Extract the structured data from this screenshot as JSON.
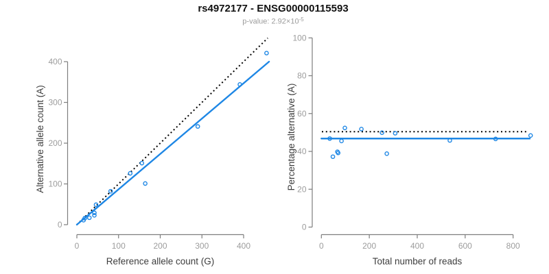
{
  "title": "rs4972177 - ENSG00000115593",
  "p_value": {
    "prefix": "p-value: 2.92×10",
    "exponent": "-5"
  },
  "colors": {
    "point_blue": "#1e87e5",
    "fit_line_blue": "#1e87e5",
    "expected_line_black": "#000000",
    "axis_gray": "#7d7d7d",
    "tick_label_gray": "#9c9c9c",
    "axis_label_dark": "#3d3d3d",
    "title_black": "#111111",
    "subtitle_gray": "#9c9c9c",
    "background": "#ffffff"
  },
  "chart_data": [
    {
      "type": "scatter",
      "title": "",
      "xlabel": "Reference allele count (G)",
      "ylabel": "Alternative allele count (A)",
      "xticks": [
        0,
        100,
        200,
        300,
        400
      ],
      "yticks": [
        0,
        100,
        200,
        300,
        400
      ],
      "xlim": [
        0,
        461
      ],
      "ylim": [
        0,
        470
      ],
      "grid": false,
      "legend": "none",
      "point_style": "open-circle",
      "points": [
        [
          16,
          11
        ],
        [
          19,
          16
        ],
        [
          30,
          17
        ],
        [
          42,
          23
        ],
        [
          42,
          29
        ],
        [
          46,
          49
        ],
        [
          81,
          82
        ],
        [
          128,
          126
        ],
        [
          156,
          151
        ],
        [
          164,
          101
        ],
        [
          290,
          241
        ],
        [
          391,
          344
        ],
        [
          455,
          421
        ]
      ],
      "lines": [
        {
          "name": "expected-1to1-line",
          "style": "dotted",
          "points": [
            [
              0,
              0
            ],
            [
              458,
              458
            ]
          ]
        },
        {
          "name": "fitted-ratio-line",
          "style": "solid",
          "points": [
            [
              0,
              0
            ],
            [
              461,
              400
            ]
          ]
        }
      ]
    },
    {
      "type": "scatter",
      "title": "",
      "xlabel": "Total number of reads",
      "ylabel": "Percentage alternative (A)",
      "xticks": [
        0,
        200,
        400,
        600,
        800
      ],
      "yticks": [
        0,
        20,
        40,
        60,
        80,
        100
      ],
      "xlim": [
        0,
        880
      ],
      "ylim": [
        0,
        100
      ],
      "grid": false,
      "legend": "none",
      "point_style": "open-circle",
      "points": [
        [
          35,
          46.8
        ],
        [
          48,
          37.2
        ],
        [
          67,
          39.8
        ],
        [
          70,
          39.2
        ],
        [
          84,
          45.5
        ],
        [
          98,
          52.4
        ],
        [
          167,
          51.8
        ],
        [
          253,
          49.9
        ],
        [
          273,
          38.8
        ],
        [
          308,
          49.6
        ],
        [
          536,
          45.8
        ],
        [
          727,
          46.6
        ],
        [
          873,
          48.4
        ]
      ],
      "lines": [
        {
          "name": "expected-50pct-line",
          "style": "dotted",
          "points": [
            [
              2,
              50.4
            ],
            [
              858,
              50.4
            ]
          ]
        },
        {
          "name": "fitted-ratio-line",
          "style": "solid",
          "points": [
            [
              0,
              46.8
            ],
            [
              870,
              46.8
            ]
          ]
        }
      ]
    }
  ]
}
